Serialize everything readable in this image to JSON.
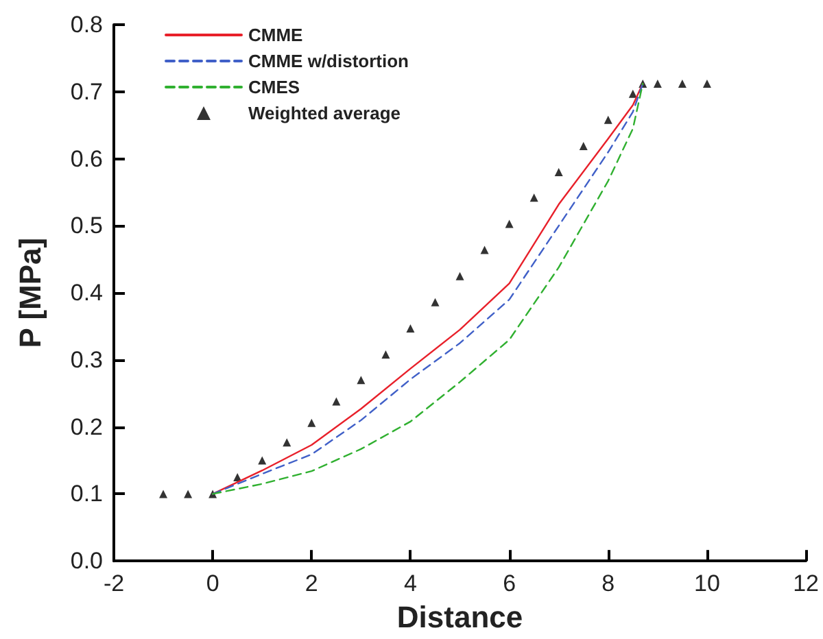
{
  "chart_data": {
    "type": "line",
    "xlabel": "Distance",
    "ylabel": "P [MPa]",
    "xlim": [
      -2,
      12
    ],
    "xticks": [
      -2,
      0,
      2,
      4,
      6,
      8,
      10,
      12
    ],
    "ylim": [
      0,
      0.8
    ],
    "yticks": [
      {
        "value": 0,
        "label": "0.0"
      },
      {
        "value": 0.1,
        "label": "0.1"
      },
      {
        "value": 0.2,
        "label": "0.2"
      },
      {
        "value": 0.3,
        "label": "0.3"
      },
      {
        "value": 0.4,
        "label": "0.4"
      },
      {
        "value": 0.5,
        "label": "0.5"
      },
      {
        "value": 0.6,
        "label": "0.6"
      },
      {
        "value": 0.7,
        "label": "0.7"
      },
      {
        "value": 0.8,
        "label": "0.8"
      }
    ],
    "grid": false,
    "legend": "top left",
    "series": [
      {
        "name": "CMME",
        "color": "#e8202a",
        "line_style": "solid",
        "marker": "none",
        "x": [
          0,
          1,
          2,
          3,
          4,
          5,
          6,
          7,
          8,
          8.5,
          8.7
        ],
        "values": [
          0.1,
          0.135,
          0.173,
          0.227,
          0.287,
          0.345,
          0.414,
          0.532,
          0.63,
          0.68,
          0.712
        ]
      },
      {
        "name": "CMME w/distortion",
        "color": "#4060c8",
        "line_style": "dashed",
        "marker": "none",
        "x": [
          0,
          1,
          2,
          3,
          4,
          5,
          6,
          7,
          8,
          8.5,
          8.7
        ],
        "values": [
          0.1,
          0.13,
          0.159,
          0.21,
          0.271,
          0.325,
          0.39,
          0.5,
          0.61,
          0.67,
          0.712
        ]
      },
      {
        "name": "CMES",
        "color": "#30b030",
        "line_style": "dashed",
        "marker": "none",
        "x": [
          0,
          1,
          2,
          3,
          4,
          5,
          6,
          7,
          8,
          8.5,
          8.7
        ],
        "values": [
          0.1,
          0.115,
          0.134,
          0.167,
          0.208,
          0.267,
          0.33,
          0.438,
          0.567,
          0.645,
          0.712
        ]
      },
      {
        "name": "Weighted average",
        "type": "scatter",
        "color": "#000000",
        "marker": "triangle",
        "x": [
          -1,
          -0.5,
          0,
          0.5,
          1,
          1.5,
          2,
          2.5,
          3,
          3.5,
          4,
          4.5,
          5,
          5.5,
          6,
          6.5,
          7,
          7.5,
          8,
          8.5,
          8.7,
          9,
          9.5,
          10
        ],
        "values": [
          0.1,
          0.1,
          0.1,
          0.125,
          0.15,
          0.177,
          0.206,
          0.238,
          0.27,
          0.308,
          0.347,
          0.386,
          0.425,
          0.464,
          0.503,
          0.542,
          0.58,
          0.619,
          0.658,
          0.697,
          0.712,
          0.712,
          0.712,
          0.712
        ]
      }
    ]
  }
}
